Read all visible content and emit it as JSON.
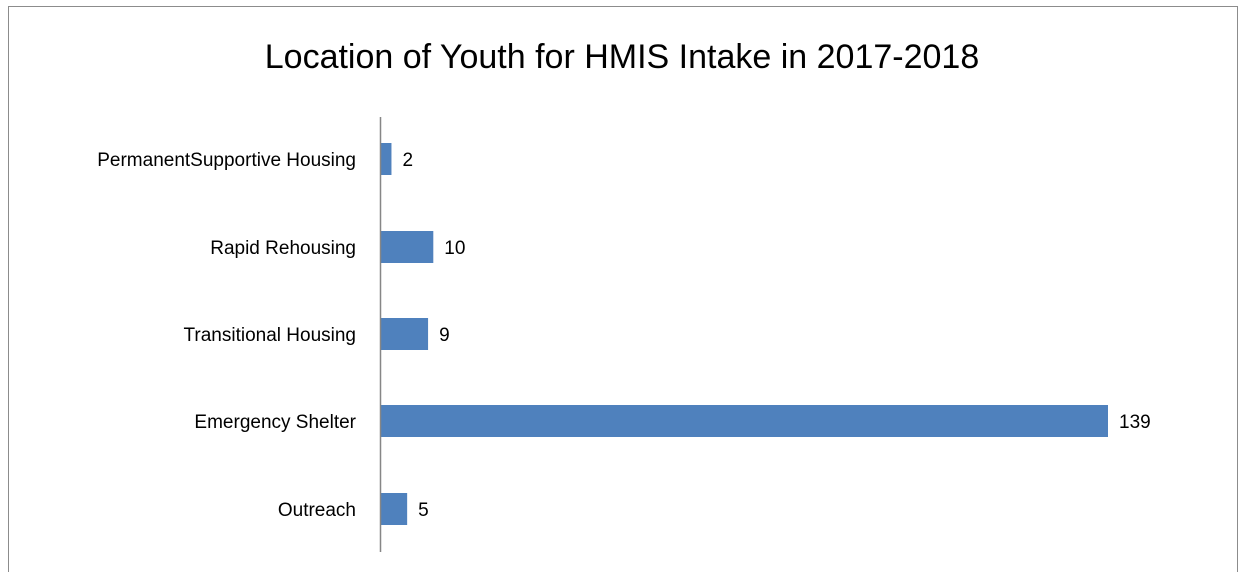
{
  "chart_data": {
    "type": "bar",
    "orientation": "horizontal",
    "title": "Location of Youth for HMIS Intake in 2017-2018",
    "categories": [
      "PermanentSupportive Housing",
      "Rapid Rehousing",
      "Transitional Housing",
      "Emergency Shelter",
      "Outreach"
    ],
    "values": [
      2,
      10,
      9,
      139,
      5
    ],
    "data_labels": [
      "2",
      "10",
      "9",
      "139",
      "5"
    ],
    "xlim": [
      0,
      139
    ],
    "grid": false,
    "legend": "none",
    "bar_color": "#4f81bd",
    "axis_color": "#868686"
  }
}
